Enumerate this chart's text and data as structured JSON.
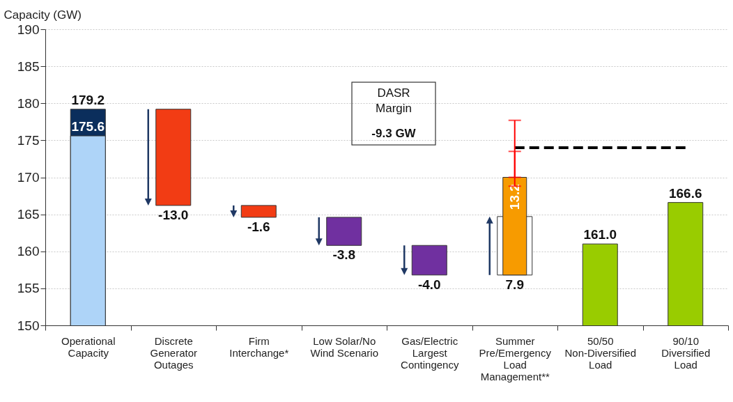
{
  "chart_data": {
    "type": "bar",
    "ylabel": "Capacity (GW)",
    "categories": [
      "Operational Capacity",
      "Discrete Generator Outages",
      "Firm Interchange*",
      "Low Solar/No Wind Scenario",
      "Gas/Electric Largest Contingency",
      "Summer Pre/Emergency Load Management**",
      "50/50 Non-Diversified Load",
      "90/10 Diversified Load"
    ],
    "ylim": [
      150,
      190
    ],
    "yticks": [
      150,
      155,
      160,
      165,
      170,
      175,
      180,
      185,
      190
    ],
    "grid": "y",
    "annotations": [
      "DASR\nMargin",
      "-9.3 GW"
    ],
    "series": [
      {
        "color": "#0b2e5c",
        "values": [
          179.2,
          null,
          null,
          null,
          null,
          null,
          null,
          null
        ],
        "value_labels": [
          "179.2",
          null,
          null,
          null,
          null,
          null,
          null,
          null
        ]
      },
      {
        "color": "#aed4f8",
        "values": [
          175.6,
          null,
          null,
          null,
          null,
          null,
          null,
          null
        ],
        "value_labels": [
          "175.6",
          null,
          null,
          null,
          null,
          null,
          null,
          null
        ]
      },
      {
        "colors": [
          null,
          "#f23c14",
          "#f23c14",
          "#7030a0",
          "#7030a0",
          null,
          null,
          null
        ],
        "values": [
          null,
          -13.0,
          -1.6,
          -3.8,
          -4.0,
          null,
          null,
          null
        ],
        "base": [
          null,
          179.2,
          166.2,
          164.6,
          160.8,
          null,
          null,
          null
        ],
        "value_labels": [
          null,
          "-13.0",
          "-1.6",
          "-3.8",
          "-4.0",
          null,
          null,
          null
        ]
      },
      {
        "color": "#ffffff",
        "values": [
          null,
          null,
          null,
          null,
          null,
          7.9,
          null,
          null
        ],
        "base": [
          null,
          null,
          null,
          null,
          null,
          156.8,
          null,
          null
        ],
        "value_labels": [
          null,
          null,
          null,
          null,
          null,
          "7.9",
          null,
          null
        ]
      },
      {
        "color": "#f79b00",
        "values": [
          null,
          null,
          null,
          null,
          null,
          13.2,
          null,
          null
        ],
        "base": [
          null,
          null,
          null,
          null,
          null,
          156.8,
          null,
          null
        ],
        "value_labels": [
          null,
          null,
          null,
          null,
          null,
          "13.2",
          null,
          null
        ],
        "errors": [
          null,
          null,
          null,
          null,
          null,
          [
            170.0,
            173.5
          ],
          null,
          null
        ]
      },
      {
        "color": "#99cc00",
        "values": [
          null,
          null,
          null,
          null,
          null,
          null,
          161.0,
          166.6
        ],
        "value_labels": [
          null,
          null,
          null,
          null,
          null,
          null,
          "161.0",
          "166.6"
        ]
      },
      {
        "type": "line",
        "color": "#000000",
        "line_style": "dashed",
        "values": [
          null,
          null,
          null,
          null,
          null,
          174,
          174,
          174
        ],
        "errors": [
          null,
          null,
          null,
          null,
          null,
          [
            168.8,
            177.7
          ],
          null,
          null
        ]
      }
    ]
  }
}
